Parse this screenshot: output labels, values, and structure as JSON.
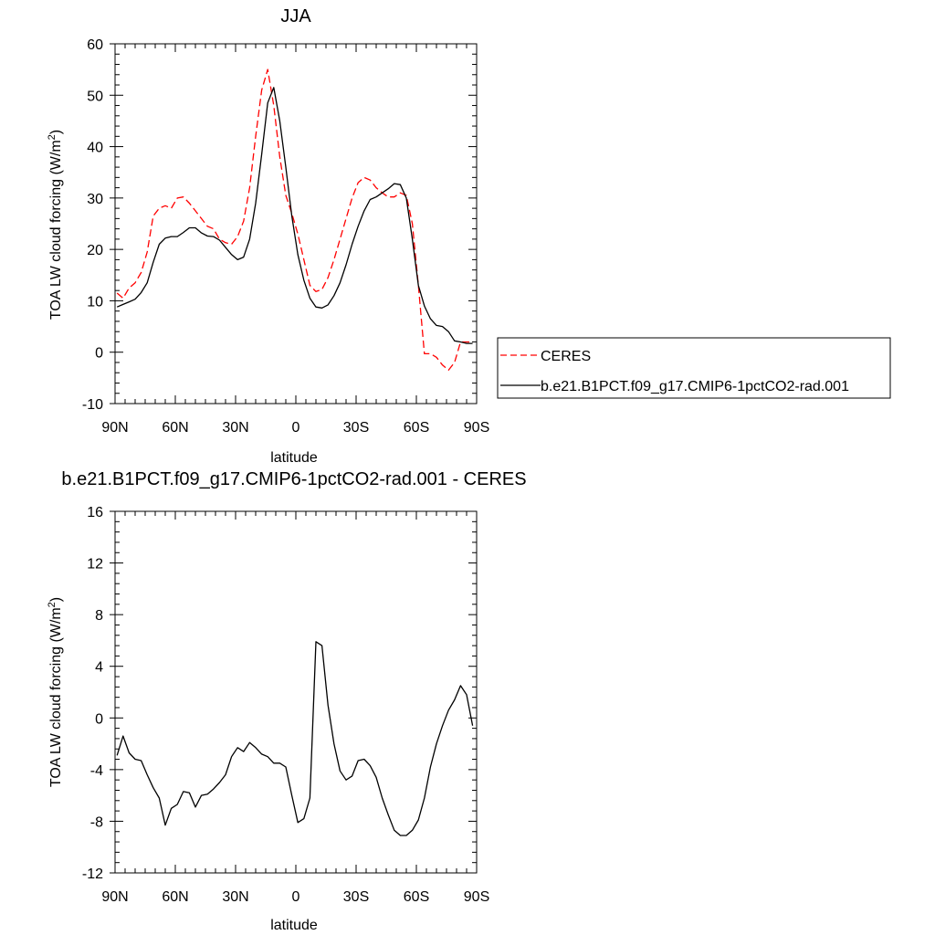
{
  "chart_data": [
    {
      "type": "line",
      "title": "JJA",
      "xlabel": "latitude",
      "ylabel": "TOA LW cloud forcing (W/m",
      "ylabel_sup": "2",
      "ylabel_close": ")",
      "xlim": [
        90,
        -90
      ],
      "ylim": [
        -10,
        60
      ],
      "x_ticks": [
        90,
        60,
        30,
        0,
        -30,
        -60,
        -90
      ],
      "x_tick_labels": [
        "90N",
        "60N",
        "30N",
        "0",
        "30S",
        "60S",
        "90S"
      ],
      "y_ticks": [
        -10,
        0,
        10,
        20,
        30,
        40,
        50,
        60
      ],
      "y_tick_labels": [
        "-10",
        "0",
        "10",
        "20",
        "30",
        "40",
        "50",
        "60"
      ],
      "grid": false,
      "legend": {
        "placement": "right",
        "entries": [
          "CERES",
          "b.e21.B1PCT.f09_g17.CMIP6-1pctCO2-rad.001"
        ]
      },
      "series": [
        {
          "name": "CERES",
          "color": "#ff0000",
          "dash": "dashed",
          "x": [
            89,
            86,
            83,
            80,
            77,
            74,
            71,
            68,
            65,
            62,
            59,
            56,
            53,
            50,
            47,
            44,
            41,
            38,
            35,
            32,
            29,
            26,
            23,
            20,
            17,
            14,
            11,
            8,
            5,
            2,
            -1,
            -4,
            -7,
            -10,
            -13,
            -16,
            -19,
            -22,
            -25,
            -28,
            -31,
            -34,
            -37,
            -40,
            -43,
            -46,
            -49,
            -52,
            -55,
            -58,
            -61,
            -64,
            -67,
            -70,
            -73,
            -76,
            -79,
            -82,
            -85,
            -88
          ],
          "y": [
            11.5,
            10.5,
            12.5,
            13.5,
            15.5,
            19.5,
            26.5,
            28,
            28.5,
            28,
            30,
            30.2,
            29,
            27.5,
            26,
            24.5,
            24,
            22,
            21.3,
            21,
            22.5,
            25.5,
            32,
            42,
            51,
            55,
            48,
            38,
            30.5,
            27,
            23,
            18,
            13,
            11.8,
            12.2,
            14.5,
            18,
            22,
            26,
            30,
            33,
            34,
            33.5,
            32,
            31,
            30.2,
            30.2,
            31,
            30.5,
            25,
            13,
            -0.3,
            -0.3,
            -1,
            -2.5,
            -3.5,
            -2,
            2,
            2,
            2
          ]
        },
        {
          "name": "b.e21.B1PCT.f09_g17.CMIP6-1pctCO2-rad.001",
          "color": "#000000",
          "dash": "solid",
          "x": [
            89,
            86,
            83,
            80,
            77,
            74,
            71,
            68,
            65,
            62,
            59,
            56,
            53,
            50,
            47,
            44,
            41,
            38,
            35,
            32,
            29,
            26,
            23,
            20,
            17,
            14,
            11,
            8,
            5,
            2,
            -1,
            -4,
            -7,
            -10,
            -13,
            -16,
            -19,
            -22,
            -25,
            -28,
            -31,
            -34,
            -37,
            -40,
            -43,
            -46,
            -49,
            -52,
            -55,
            -58,
            -61,
            -64,
            -67,
            -70,
            -73,
            -76,
            -79,
            -82,
            -85,
            -88
          ],
          "y": [
            8.8,
            9.3,
            9.8,
            10.3,
            11.6,
            13.5,
            17.5,
            21,
            22.2,
            22.5,
            22.5,
            23.3,
            24.2,
            24.2,
            23.2,
            22.6,
            22.5,
            21.8,
            20.4,
            19,
            18,
            18.5,
            22,
            29,
            38.5,
            48.5,
            51.5,
            45,
            36,
            26.5,
            19,
            14,
            10.5,
            8.8,
            8.6,
            9.2,
            11,
            13.5,
            17,
            21,
            24.5,
            27.5,
            29.7,
            30.2,
            31,
            31.8,
            32.8,
            32.6,
            30,
            22,
            13,
            9,
            6.5,
            5.2,
            5,
            4,
            2.2,
            2,
            1.7,
            1.7
          ]
        }
      ]
    },
    {
      "type": "line",
      "title": "b.e21.B1PCT.f09_g17.CMIP6-1pctCO2-rad.001 - CERES",
      "xlabel": "latitude",
      "ylabel": "TOA LW cloud forcing (W/m",
      "ylabel_sup": "2",
      "ylabel_close": ")",
      "xlim": [
        90,
        -90
      ],
      "ylim": [
        -12,
        16
      ],
      "x_ticks": [
        90,
        60,
        30,
        0,
        -30,
        -60,
        -90
      ],
      "x_tick_labels": [
        "90N",
        "60N",
        "30N",
        "0",
        "30S",
        "60S",
        "90S"
      ],
      "y_ticks": [
        -12,
        -8,
        -4,
        0,
        4,
        8,
        12,
        16
      ],
      "y_tick_labels": [
        "-12",
        "-8",
        "-4",
        "0",
        "4",
        "8",
        "12",
        "16"
      ],
      "grid": false,
      "series": [
        {
          "color": "#000000",
          "dash": "solid",
          "x": [
            89,
            86,
            83,
            80,
            77,
            74,
            71,
            68,
            65,
            62,
            59,
            56,
            53,
            50,
            47,
            44,
            41,
            38,
            35,
            32,
            29,
            26,
            23,
            20,
            17,
            14,
            11,
            8,
            5,
            2,
            -1,
            -4,
            -7,
            -10,
            -13,
            -16,
            -19,
            -22,
            -25,
            -28,
            -31,
            -34,
            -37,
            -40,
            -43,
            -46,
            -49,
            -52,
            -55,
            -58,
            -61,
            -64,
            -67,
            -70,
            -73,
            -76,
            -79,
            -82,
            -85,
            -88
          ],
          "y": [
            -2.9,
            -1.4,
            -2.7,
            -3.2,
            -3.3,
            -4.4,
            -5.4,
            -6.2,
            -8.3,
            -7,
            -6.7,
            -5.7,
            -5.8,
            -6.9,
            -6,
            -5.9,
            -5.5,
            -5,
            -4.4,
            -3,
            -2.3,
            -2.6,
            -1.9,
            -2.3,
            -2.8,
            -3,
            -3.5,
            -3.5,
            -3.8,
            -6,
            -8.1,
            -7.8,
            -6.2,
            5.9,
            5.6,
            1,
            -2,
            -4.1,
            -4.8,
            -4.5,
            -3.3,
            -3.2,
            -3.7,
            -4.6,
            -6.2,
            -7.5,
            -8.7,
            -9.1,
            -9.1,
            -8.7,
            -7.9,
            -6.2,
            -3.8,
            -2,
            -0.6,
            0.6,
            1.4,
            2.5,
            1.8,
            -0.6
          ]
        }
      ]
    }
  ]
}
